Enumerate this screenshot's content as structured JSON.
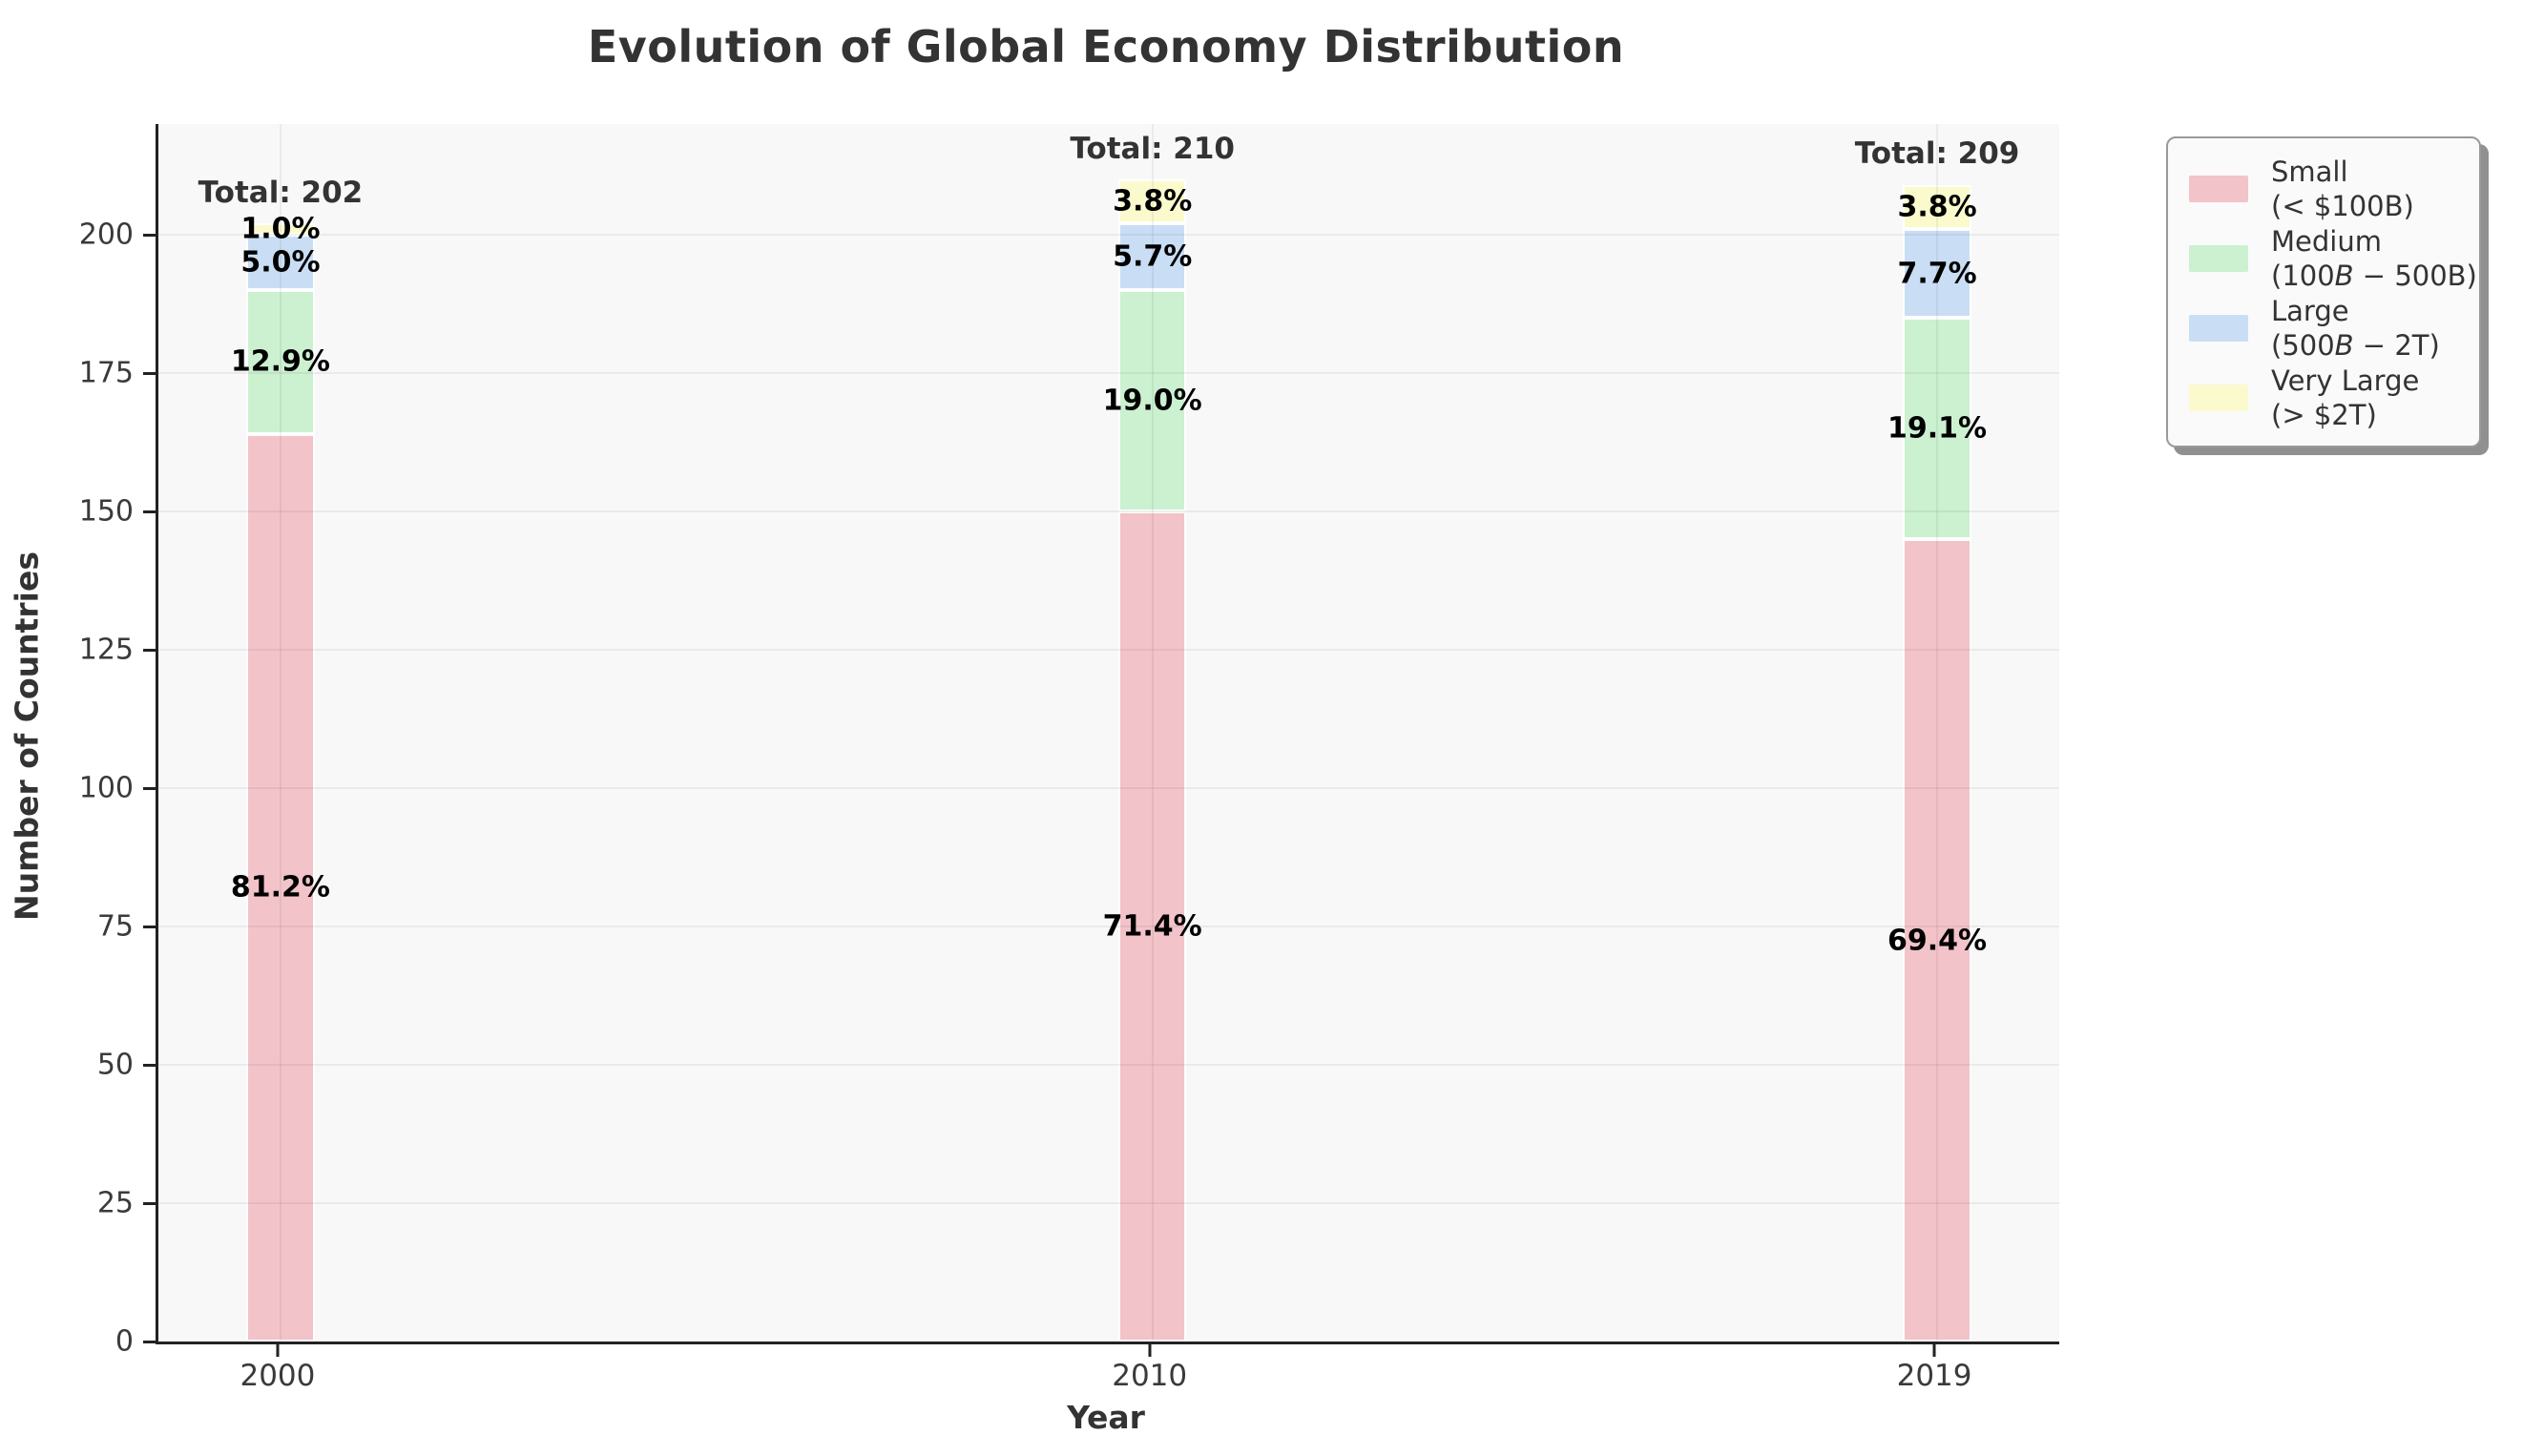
{
  "chart_data": {
    "type": "bar",
    "stacked": true,
    "title": "Evolution of Global Economy Distribution",
    "xlabel": "Year",
    "ylabel": "Number of Countries",
    "categories": [
      "2000",
      "2010",
      "2019"
    ],
    "x": [
      2000,
      2010,
      2019
    ],
    "xlim": [
      1998.6,
      2020.4
    ],
    "ylim": [
      0,
      220
    ],
    "yticks": [
      0,
      25,
      50,
      75,
      100,
      125,
      150,
      175,
      200
    ],
    "grid": true,
    "bar_width_years": 0.78,
    "series": [
      {
        "name": "Small (< $100B)",
        "color": "#f2c3c9",
        "values": [
          164,
          150,
          145
        ],
        "pct_labels": [
          "81.2%",
          "71.4%",
          "69.4%"
        ]
      },
      {
        "name": "Medium ($100B-$500B)",
        "color": "#cbf1d0",
        "values": [
          26,
          40,
          40
        ],
        "pct_labels": [
          "12.9%",
          "19.0%",
          "19.1%"
        ]
      },
      {
        "name": "Large ($500B-$2T)",
        "color": "#c9def4",
        "values": [
          10,
          12,
          16
        ],
        "pct_labels": [
          "5.0%",
          "5.7%",
          "7.7%"
        ]
      },
      {
        "name": "Very Large (> $2T)",
        "color": "#fafacd",
        "values": [
          2,
          8,
          8
        ],
        "pct_labels": [
          "1.0%",
          "3.8%",
          "3.8%"
        ]
      }
    ],
    "totals": [
      202,
      210,
      209
    ],
    "total_labels": [
      "Total: 202",
      "Total: 210",
      "Total: 209"
    ],
    "legend_position": "upper right outside axes"
  },
  "legend": {
    "items": [
      {
        "line1": "Small",
        "line2_pre": "(< $100B)",
        "line2_italic": "",
        "line2_post": ""
      },
      {
        "line1": "Medium",
        "line2_pre": "(100",
        "line2_italic": "B",
        "line2_post": " − 500B)"
      },
      {
        "line1": "Large",
        "line2_pre": "(500",
        "line2_italic": "B",
        "line2_post": " − 2T)"
      },
      {
        "line1": "Very Large",
        "line2_pre": "(> $2T)",
        "line2_italic": "",
        "line2_post": ""
      }
    ]
  }
}
